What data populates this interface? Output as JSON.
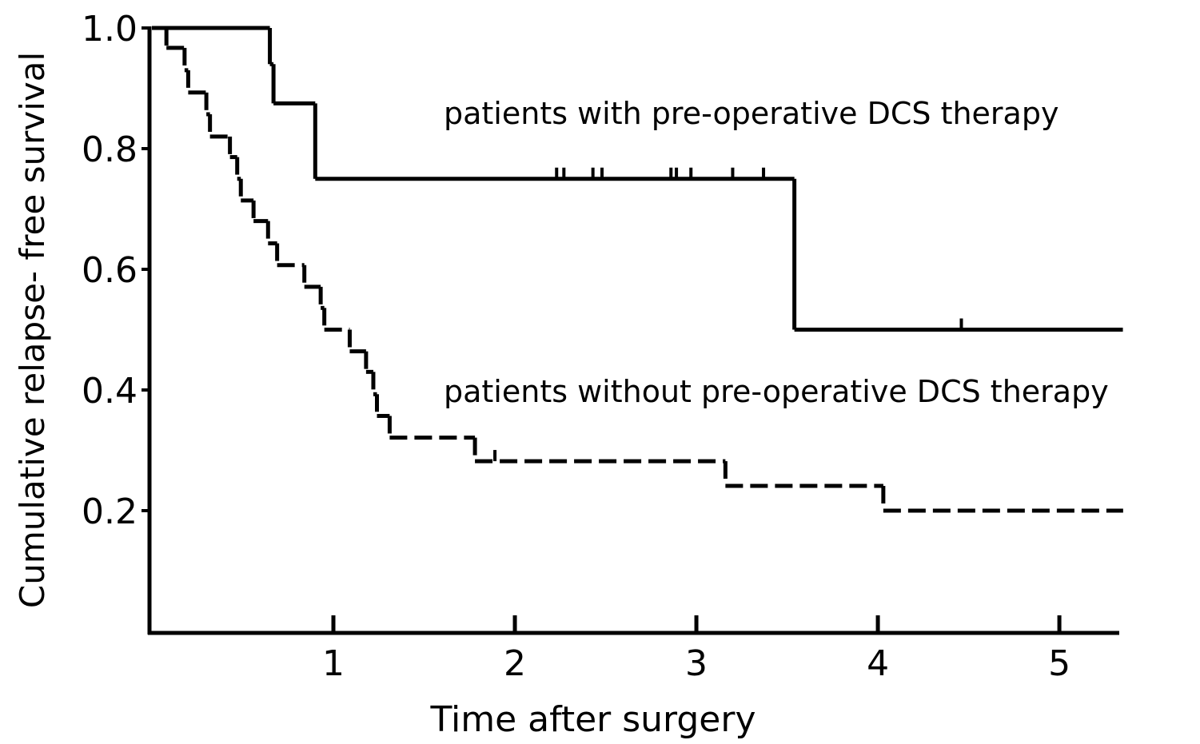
{
  "chart_data": {
    "type": "step",
    "x_label": "Time after surgery",
    "y_label": "Cumulative relapse- free survival",
    "annotations": [
      "patients with pre-operative DCS therapy",
      "patients without pre-operative DCS therapy"
    ],
    "xlim": [
      0,
      5.33
    ],
    "ylim": [
      0,
      1
    ],
    "xticks": [
      1,
      2,
      3,
      4,
      5
    ],
    "yticks": [
      0.2,
      0.4,
      0.6,
      0.8,
      {
        "value": 1,
        "label": "1.0"
      }
    ],
    "series": [
      {
        "color": "#000000",
        "line_style": "solid",
        "x": [
          0,
          0.65,
          0.67,
          0.9,
          3.54,
          5.35
        ],
        "values": [
          1.0,
          0.94,
          0.875,
          0.75,
          0.5,
          0.5
        ],
        "censored": {
          "x": [
            2.23,
            2.27,
            2.43,
            2.48,
            2.86,
            2.89,
            2.97,
            3.2,
            3.37,
            4.46
          ],
          "values": [
            0.75,
            0.75,
            0.75,
            0.75,
            0.75,
            0.75,
            0.75,
            0.75,
            0.75,
            0.5
          ]
        }
      },
      {
        "color": "#000000",
        "line_style": "dashed",
        "x": [
          0,
          0.08,
          0.18,
          0.2,
          0.3,
          0.32,
          0.43,
          0.47,
          0.49,
          0.56,
          0.64,
          0.69,
          0.84,
          0.93,
          0.95,
          1.09,
          1.18,
          1.22,
          1.24,
          1.31,
          1.78,
          3.16,
          4.03,
          5.35
        ],
        "values": [
          1.0,
          0.967,
          0.93,
          0.893,
          0.857,
          0.82,
          0.786,
          0.75,
          0.714,
          0.68,
          0.643,
          0.607,
          0.571,
          0.536,
          0.5,
          0.464,
          0.43,
          0.393,
          0.357,
          0.321,
          0.282,
          0.241,
          0.2,
          0.2
        ],
        "censored": {
          "x": [
            1.89
          ],
          "values": [
            0.282
          ]
        }
      }
    ]
  }
}
